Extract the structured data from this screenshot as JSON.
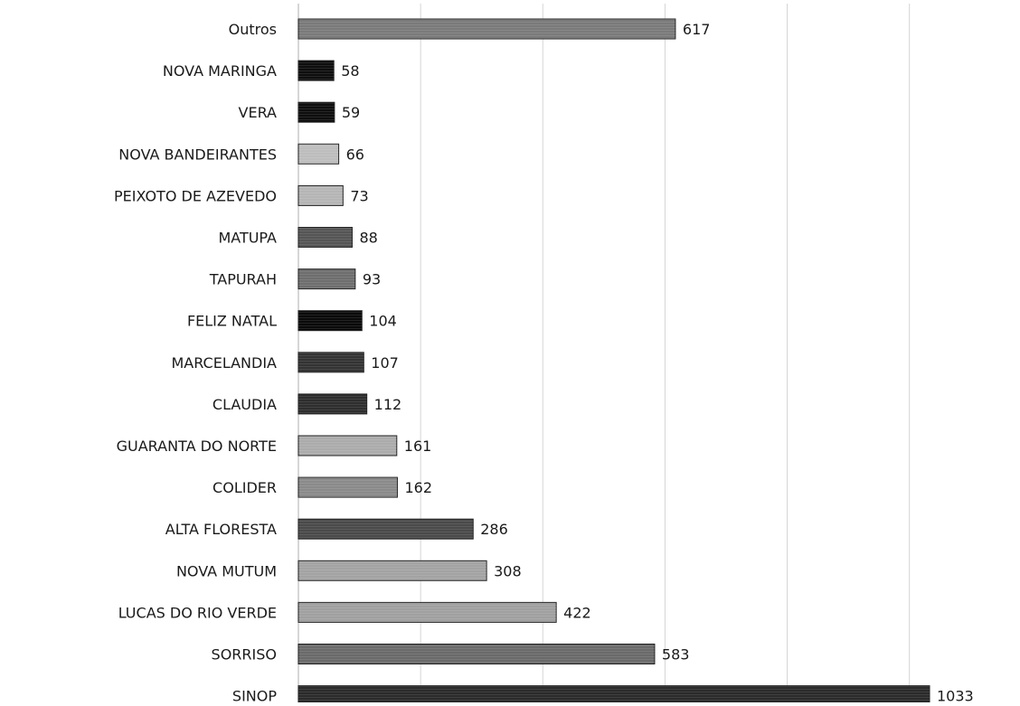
{
  "chart_data": {
    "type": "bar",
    "orientation": "horizontal",
    "categories": [
      "Outros",
      "NOVA MARINGA",
      "VERA",
      "NOVA BANDEIRANTES",
      "PEIXOTO DE AZEVEDO",
      "MATUPA",
      "TAPURAH",
      "FELIZ NATAL",
      "MARCELANDIA",
      "CLAUDIA",
      "GUARANTA DO NORTE",
      "COLIDER",
      "ALTA FLORESTA",
      "NOVA MUTUM",
      "LUCAS DO RIO VERDE",
      "SORRISO",
      "SINOP"
    ],
    "values": [
      617,
      58,
      59,
      66,
      73,
      88,
      93,
      104,
      107,
      112,
      161,
      162,
      286,
      308,
      422,
      583,
      1033
    ],
    "value_labels": [
      "617",
      "58",
      "59",
      "66",
      "73",
      "88",
      "93",
      "104",
      "107",
      "112",
      "161",
      "162",
      "286",
      "308",
      "422",
      "583",
      "1033"
    ],
    "colors": [
      "#7a7a7a",
      "#0e0e0e",
      "#0e0e0e",
      "#bdbdbd",
      "#b5b5b5",
      "#555555",
      "#6e6e6e",
      "#0a0a0a",
      "#333333",
      "#2e2e2e",
      "#ababab",
      "#8a8a8a",
      "#4a4a4a",
      "#a3a3a3",
      "#a0a0a0",
      "#6a6a6a",
      "#2a2a2a"
    ],
    "xlim": [
      0,
      1200
    ],
    "grid": true,
    "legend": "none"
  }
}
